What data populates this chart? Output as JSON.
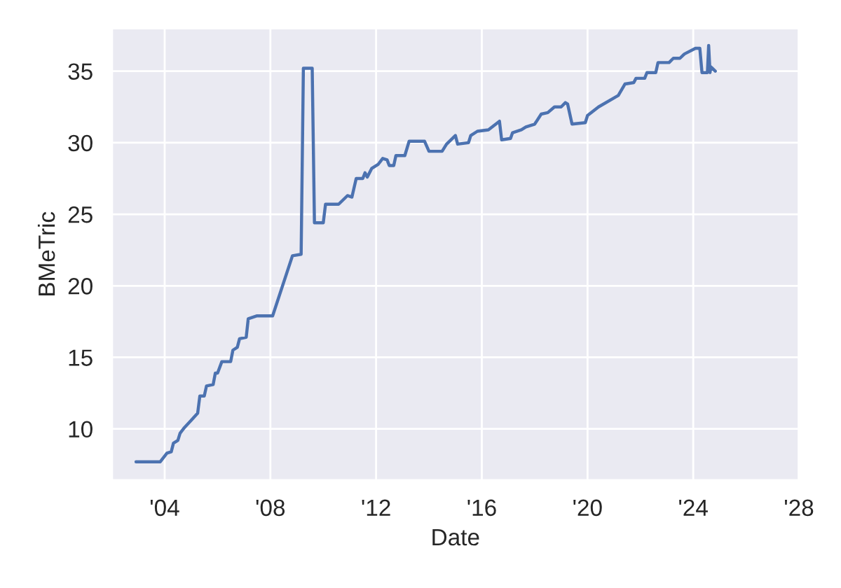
{
  "chart_data": {
    "type": "line",
    "xlabel": "Date",
    "ylabel": "BMeTric",
    "x": [
      "2002-12",
      "2003-11",
      "2004-02",
      "2004-04",
      "2004-05",
      "2004-07",
      "2004-08",
      "2004-10",
      "2005-01",
      "2005-04",
      "2005-05",
      "2005-07",
      "2005-08",
      "2005-11",
      "2005-12",
      "2006-01",
      "2006-03",
      "2006-07",
      "2006-08",
      "2006-10",
      "2006-11",
      "2007-02",
      "2007-03",
      "2007-07",
      "2008-02",
      "2008-11",
      "2009-03",
      "2009-04",
      "2009-08",
      "2009-09",
      "2010-01",
      "2010-02",
      "2010-08",
      "2010-12",
      "2011-02",
      "2011-04",
      "2011-07",
      "2011-08",
      "2011-09",
      "2011-11",
      "2012-02",
      "2012-04",
      "2012-06",
      "2012-07",
      "2012-09",
      "2012-10",
      "2013-02",
      "2013-04",
      "2013-11",
      "2014-01",
      "2014-07",
      "2014-09",
      "2015-01",
      "2015-02",
      "2015-07",
      "2015-08",
      "2015-11",
      "2016-04",
      "2016-09",
      "2016-10",
      "2017-02",
      "2017-03",
      "2017-07",
      "2017-09",
      "2018-01",
      "2018-04",
      "2018-07",
      "2018-10",
      "2019-01",
      "2019-03",
      "2019-04",
      "2019-06",
      "2019-12",
      "2020-01",
      "2020-06",
      "2021-03",
      "2021-06",
      "2021-10",
      "2021-11",
      "2022-03",
      "2022-04",
      "2022-08",
      "2022-09",
      "2023-02",
      "2023-04",
      "2023-07",
      "2023-09",
      "2024-02",
      "2024-04",
      "2024-05",
      "2024-07-15",
      "2024-08-01",
      "2024-08-20",
      "2024-09",
      "2024-11"
    ],
    "series": [
      {
        "color": "#4c72b0",
        "values": [
          7.7,
          7.7,
          8.3,
          8.4,
          9.0,
          9.2,
          9.7,
          10.1,
          10.6,
          11.1,
          12.3,
          12.3,
          13.0,
          13.1,
          13.9,
          13.9,
          14.7,
          14.7,
          15.5,
          15.7,
          16.3,
          16.4,
          17.7,
          17.9,
          17.9,
          22.1,
          22.2,
          35.2,
          35.2,
          24.4,
          24.4,
          25.7,
          25.7,
          26.3,
          26.2,
          27.5,
          27.5,
          27.9,
          27.6,
          28.2,
          28.5,
          28.9,
          28.8,
          28.4,
          28.4,
          29.1,
          29.1,
          30.1,
          30.1,
          29.4,
          29.4,
          29.9,
          30.5,
          29.9,
          30.0,
          30.5,
          30.8,
          30.9,
          31.5,
          30.2,
          30.3,
          30.7,
          30.9,
          31.1,
          31.3,
          32.0,
          32.1,
          32.5,
          32.5,
          32.8,
          32.7,
          31.3,
          31.4,
          31.9,
          32.5,
          33.3,
          34.1,
          34.2,
          34.5,
          34.5,
          34.9,
          34.9,
          35.6,
          35.6,
          35.9,
          35.9,
          36.2,
          36.6,
          36.6,
          34.9,
          34.9,
          36.8,
          34.9,
          35.3,
          35.0
        ]
      }
    ],
    "xlim": [
      "2002-01-01",
      "2028-01-01"
    ],
    "xticks": [
      {
        "value": "2004-01-01",
        "label": "'04"
      },
      {
        "value": "2008-01-01",
        "label": "'08"
      },
      {
        "value": "2012-01-01",
        "label": "'12"
      },
      {
        "value": "2016-01-01",
        "label": "'16"
      },
      {
        "value": "2020-01-01",
        "label": "'20"
      },
      {
        "value": "2024-01-01",
        "label": "'24"
      },
      {
        "value": "2028-01-01",
        "label": "'28"
      }
    ],
    "ylim": [
      6.4,
      38
    ],
    "yticks": [
      10,
      15,
      20,
      25,
      30,
      35
    ],
    "grid": true
  }
}
